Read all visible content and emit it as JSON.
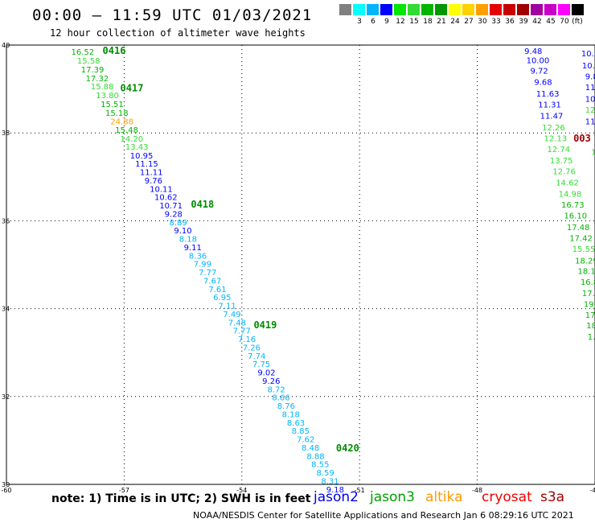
{
  "header": {
    "title": "00:00 – 11:59 UTC 01/03/2021",
    "subtitle": "12 hour collection of altimeter wave heights"
  },
  "legend": {
    "unit": "(ft)",
    "swatches": [
      {
        "color": "#808080",
        "label": ""
      },
      {
        "color": "#00ffff",
        "label": "3"
      },
      {
        "color": "#00b4ff",
        "label": "6"
      },
      {
        "color": "#0000ff",
        "label": "9"
      },
      {
        "color": "#00e600",
        "label": "12"
      },
      {
        "color": "#32dc32",
        "label": "15"
      },
      {
        "color": "#00b400",
        "label": "18"
      },
      {
        "color": "#009600",
        "label": "21"
      },
      {
        "color": "#ffff00",
        "label": "24"
      },
      {
        "color": "#ffd200",
        "label": "27"
      },
      {
        "color": "#ffa000",
        "label": "30"
      },
      {
        "color": "#e60000",
        "label": "33"
      },
      {
        "color": "#c80000",
        "label": "36"
      },
      {
        "color": "#a00000",
        "label": "39"
      },
      {
        "color": "#a000a0",
        "label": "42"
      },
      {
        "color": "#c800c8",
        "label": "45"
      },
      {
        "color": "#ff00ff",
        "label": "70"
      },
      {
        "color": "#000000",
        "label": ""
      }
    ]
  },
  "map": {
    "lon_range": [
      -60,
      -45
    ],
    "lat_range": [
      30,
      40
    ],
    "lon_ticks": [
      "-60",
      "-57",
      "-54",
      "-51",
      "-48",
      "-45"
    ],
    "lat_ticks": [
      "40",
      "38",
      "36",
      "34",
      "32",
      "30"
    ],
    "track_a": {
      "times": [
        {
          "text": "0416",
          "lat": 39.8,
          "lon": -57.55
        },
        {
          "text": "0417",
          "lat": 38.95,
          "lon": -57.1
        },
        {
          "text": "0418",
          "lat": 36.3,
          "lon": -55.3
        },
        {
          "text": "0419",
          "lat": 33.55,
          "lon": -53.7
        },
        {
          "text": "0420",
          "lat": 30.75,
          "lon": -51.6
        }
      ],
      "points": [
        {
          "v": "16.52",
          "c": "#00b400",
          "lat": 39.78,
          "lon": -58.35
        },
        {
          "v": "15.58",
          "c": "#32dc32",
          "lat": 39.58,
          "lon": -58.2
        },
        {
          "v": "17.39",
          "c": "#00b400",
          "lat": 39.38,
          "lon": -58.1
        },
        {
          "v": "17.32",
          "c": "#00b400",
          "lat": 39.18,
          "lon": -57.98
        },
        {
          "v": "15.88",
          "c": "#32dc32",
          "lat": 38.99,
          "lon": -57.85
        },
        {
          "v": "13.80",
          "c": "#32dc32",
          "lat": 38.79,
          "lon": -57.72
        },
        {
          "v": "15.51",
          "c": "#00b400",
          "lat": 38.59,
          "lon": -57.6
        },
        {
          "v": "15.18",
          "c": "#00b400",
          "lat": 38.39,
          "lon": -57.48
        },
        {
          "v": "24.88",
          "c": "#ffa000",
          "lat": 38.2,
          "lon": -57.35
        },
        {
          "v": "15.48",
          "c": "#00b400",
          "lat": 38.0,
          "lon": -57.23
        },
        {
          "v": "14.20",
          "c": "#32dc32",
          "lat": 37.8,
          "lon": -57.1
        },
        {
          "v": "13.43",
          "c": "#32dc32",
          "lat": 37.62,
          "lon": -56.97
        },
        {
          "v": "10.95",
          "c": "#0000ff",
          "lat": 37.42,
          "lon": -56.85
        },
        {
          "v": "11.15",
          "c": "#0000ff",
          "lat": 37.23,
          "lon": -56.72
        },
        {
          "v": "11.11",
          "c": "#0000ff",
          "lat": 37.04,
          "lon": -56.6
        },
        {
          "v": "9.76",
          "c": "#0000ff",
          "lat": 36.85,
          "lon": -56.48
        },
        {
          "v": "10.11",
          "c": "#0000ff",
          "lat": 36.66,
          "lon": -56.35
        },
        {
          "v": "10.62",
          "c": "#0000ff",
          "lat": 36.47,
          "lon": -56.23
        },
        {
          "v": "10.71",
          "c": "#0000ff",
          "lat": 36.28,
          "lon": -56.1
        },
        {
          "v": "9.28",
          "c": "#0000ff",
          "lat": 36.09,
          "lon": -55.97
        },
        {
          "v": "8.89",
          "c": "#00b4ff",
          "lat": 35.9,
          "lon": -55.85
        },
        {
          "v": "9.10",
          "c": "#0000ff",
          "lat": 35.71,
          "lon": -55.73
        },
        {
          "v": "8.18",
          "c": "#00b4ff",
          "lat": 35.52,
          "lon": -55.6
        },
        {
          "v": "9.11",
          "c": "#0000ff",
          "lat": 35.33,
          "lon": -55.48
        },
        {
          "v": "8.36",
          "c": "#00b4ff",
          "lat": 35.14,
          "lon": -55.35
        },
        {
          "v": "7.99",
          "c": "#00b4ff",
          "lat": 34.95,
          "lon": -55.23
        },
        {
          "v": "7.77",
          "c": "#00b4ff",
          "lat": 34.76,
          "lon": -55.1
        },
        {
          "v": "7.67",
          "c": "#00b4ff",
          "lat": 34.57,
          "lon": -54.98
        },
        {
          "v": "7.61",
          "c": "#00b4ff",
          "lat": 34.38,
          "lon": -54.85
        },
        {
          "v": "6.95",
          "c": "#00b4ff",
          "lat": 34.19,
          "lon": -54.73
        },
        {
          "v": "7.11",
          "c": "#00b4ff",
          "lat": 34.0,
          "lon": -54.6
        },
        {
          "v": "7.49",
          "c": "#00b4ff",
          "lat": 33.81,
          "lon": -54.48
        },
        {
          "v": "7.48",
          "c": "#00b4ff",
          "lat": 33.62,
          "lon": -54.35
        },
        {
          "v": "7.77",
          "c": "#00b4ff",
          "lat": 33.43,
          "lon": -54.23
        },
        {
          "v": "7.16",
          "c": "#00b4ff",
          "lat": 33.24,
          "lon": -54.1
        },
        {
          "v": "7.26",
          "c": "#00b4ff",
          "lat": 33.05,
          "lon": -53.98
        },
        {
          "v": "7.74",
          "c": "#00b4ff",
          "lat": 32.86,
          "lon": -53.85
        },
        {
          "v": "7.75",
          "c": "#00b4ff",
          "lat": 32.67,
          "lon": -53.73
        },
        {
          "v": "9.02",
          "c": "#0000ff",
          "lat": 32.48,
          "lon": -53.6
        },
        {
          "v": "9.26",
          "c": "#0000ff",
          "lat": 32.29,
          "lon": -53.48
        },
        {
          "v": "8.72",
          "c": "#00b4ff",
          "lat": 32.1,
          "lon": -53.35
        },
        {
          "v": "8.66",
          "c": "#00b4ff",
          "lat": 31.91,
          "lon": -53.23
        },
        {
          "v": "8.76",
          "c": "#00b4ff",
          "lat": 31.72,
          "lon": -53.1
        },
        {
          "v": "8.18",
          "c": "#00b4ff",
          "lat": 31.53,
          "lon": -52.98
        },
        {
          "v": "8.63",
          "c": "#00b4ff",
          "lat": 31.34,
          "lon": -52.85
        },
        {
          "v": "8.85",
          "c": "#00b4ff",
          "lat": 31.15,
          "lon": -52.73
        },
        {
          "v": "7.62",
          "c": "#00b4ff",
          "lat": 30.96,
          "lon": -52.6
        },
        {
          "v": "8.48",
          "c": "#00b4ff",
          "lat": 30.77,
          "lon": -52.48
        },
        {
          "v": "8.88",
          "c": "#00b4ff",
          "lat": 30.58,
          "lon": -52.35
        },
        {
          "v": "8.55",
          "c": "#00b4ff",
          "lat": 30.39,
          "lon": -52.23
        },
        {
          "v": "8.59",
          "c": "#00b4ff",
          "lat": 30.2,
          "lon": -52.1
        },
        {
          "v": "8.31",
          "c": "#00b4ff",
          "lat": 30.01,
          "lon": -51.98
        },
        {
          "v": "9.18",
          "c": "#0000ff",
          "lat": 29.82,
          "lon": -51.85
        }
      ]
    },
    "track_b": {
      "times": [
        {
          "text": "003",
          "lat": 37.8,
          "lon": -45.55
        }
      ],
      "points": [
        {
          "v": "9.48",
          "c": "#0000ff",
          "lat": 39.8,
          "lon": -46.8
        },
        {
          "v": "10.00",
          "c": "#0000ff",
          "lat": 39.59,
          "lon": -46.75
        },
        {
          "v": "9.72",
          "c": "#0000ff",
          "lat": 39.35,
          "lon": -46.65
        },
        {
          "v": "9.68",
          "c": "#0000ff",
          "lat": 39.09,
          "lon": -46.55
        },
        {
          "v": "11.63",
          "c": "#0000ff",
          "lat": 38.83,
          "lon": -46.5
        },
        {
          "v": "11.31",
          "c": "#0000ff",
          "lat": 38.58,
          "lon": -46.45
        },
        {
          "v": "11.47",
          "c": "#0000ff",
          "lat": 38.32,
          "lon": -46.4
        },
        {
          "v": "12.26",
          "c": "#32dc32",
          "lat": 38.06,
          "lon": -46.35
        },
        {
          "v": "12.13",
          "c": "#32dc32",
          "lat": 37.81,
          "lon": -46.3
        },
        {
          "v": "12.74",
          "c": "#32dc32",
          "lat": 37.56,
          "lon": -46.22
        },
        {
          "v": "13.75",
          "c": "#32dc32",
          "lat": 37.31,
          "lon": -46.15
        },
        {
          "v": "12.76",
          "c": "#32dc32",
          "lat": 37.06,
          "lon": -46.08
        },
        {
          "v": "14.62",
          "c": "#32dc32",
          "lat": 36.8,
          "lon": -46.0
        },
        {
          "v": "14.98",
          "c": "#32dc32",
          "lat": 36.55,
          "lon": -45.93
        },
        {
          "v": "16.73",
          "c": "#00b400",
          "lat": 36.3,
          "lon": -45.86
        },
        {
          "v": "16.10",
          "c": "#00b400",
          "lat": 36.05,
          "lon": -45.79
        },
        {
          "v": "17.48",
          "c": "#00b400",
          "lat": 35.79,
          "lon": -45.72
        },
        {
          "v": "17.42",
          "c": "#00b400",
          "lat": 35.54,
          "lon": -45.65
        },
        {
          "v": "15.55",
          "c": "#32dc32",
          "lat": 35.29,
          "lon": -45.58
        },
        {
          "v": "18.29",
          "c": "#00b400",
          "lat": 35.03,
          "lon": -45.51
        },
        {
          "v": "18.17",
          "c": "#00b400",
          "lat": 34.79,
          "lon": -45.44
        },
        {
          "v": "16.8",
          "c": "#00b400",
          "lat": 34.54,
          "lon": -45.37
        },
        {
          "v": "17.7",
          "c": "#00b400",
          "lat": 34.29,
          "lon": -45.33
        },
        {
          "v": "19.",
          "c": "#00b400",
          "lat": 34.04,
          "lon": -45.29
        },
        {
          "v": "17",
          "c": "#00b400",
          "lat": 33.79,
          "lon": -45.25
        },
        {
          "v": "18",
          "c": "#00b400",
          "lat": 33.55,
          "lon": -45.22
        },
        {
          "v": "1.",
          "c": "#00b400",
          "lat": 33.3,
          "lon": -45.19
        }
      ]
    },
    "track_c": {
      "points": [
        {
          "v": "10.6",
          "c": "#0000ff",
          "lat": 39.74,
          "lon": -45.35
        },
        {
          "v": "10.4",
          "c": "#0000ff",
          "lat": 39.47,
          "lon": -45.33
        },
        {
          "v": "9.8",
          "c": "#0000ff",
          "lat": 39.22,
          "lon": -45.25
        },
        {
          "v": "11.",
          "c": "#0000ff",
          "lat": 38.97,
          "lon": -45.25
        },
        {
          "v": "10",
          "c": "#0000ff",
          "lat": 38.71,
          "lon": -45.25
        },
        {
          "v": "12",
          "c": "#32dc32",
          "lat": 38.46,
          "lon": -45.25
        },
        {
          "v": "11",
          "c": "#0000ff",
          "lat": 38.2,
          "lon": -45.25
        },
        {
          "v": "1.",
          "c": "#32dc32",
          "lat": 37.5,
          "lon": -45.1
        }
      ]
    }
  },
  "notes": {
    "text": "note:  1) Time is in UTC;  2) SWH is in feet",
    "satellites": [
      {
        "name": "jason2",
        "color": "#0000e6"
      },
      {
        "name": "jason3",
        "color": "#00a000"
      },
      {
        "name": "altika",
        "color": "#ff9900"
      },
      {
        "name": "cryosat",
        "color": "#ee0000"
      },
      {
        "name": "s3a",
        "color": "#a00000"
      }
    ]
  },
  "footer": "NOAA/NESDIS Center for Satellite Applications and Research   Jan  6 08:29:16 UTC 2021"
}
